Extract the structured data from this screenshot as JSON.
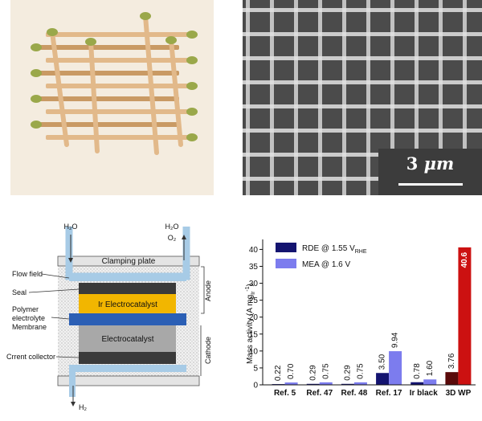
{
  "panels": {
    "sem": {
      "scale_number": "3",
      "scale_unit": "μm"
    },
    "cell": {
      "h2o_in": "H₂O",
      "h2o_out": "H₂O",
      "o2_out": "O₂",
      "h2_out": "H₂",
      "clamping_plate": "Clamping plate",
      "flow_field": "Flow field",
      "seal": "Seal",
      "ir_layer": "Ir Electrocatalyst",
      "membrane_line1": "Polymer",
      "membrane_line2": "electrolyte",
      "membrane_line3": "Membrane",
      "electrocatalyst": "Electrocatalyst",
      "current_collector": "Crrent collector",
      "anode": "Anode",
      "cathode": "Cathode",
      "colors": {
        "ir_layer": "#f2b600",
        "membrane": "#2b5fb5",
        "electrocatalyst": "#a8a8a8",
        "dark_layer": "#3a3a3a",
        "flow": "#a7cbe6"
      }
    }
  },
  "chart_data": {
    "type": "bar",
    "ylabel": "Mass activity (A mgIr-1)",
    "ylabel_main": "Mass activity (A mg",
    "ylabel_sub": "Ir",
    "ylabel_sup": "-1",
    "ylabel_end": ")",
    "ylim": [
      0,
      42
    ],
    "yticks": [
      "0",
      "5",
      "10",
      "15",
      "20",
      "25",
      "30",
      "35",
      "40"
    ],
    "categories": [
      "Ref. 5",
      "Ref. 47",
      "Ref. 48",
      "Ref. 17",
      "Ir black",
      "3D WP"
    ],
    "series": [
      {
        "name": "RDE @ 1.55 VRHE",
        "legend_main": "RDE @ 1.55 V",
        "legend_sub": "RHE",
        "color": "#141470",
        "values": [
          0.22,
          0.29,
          0.29,
          3.5,
          0.78,
          3.76
        ]
      },
      {
        "name": "MEA @ 1.6 V",
        "legend_main": "MEA @ 1.6 V",
        "legend_sub": "",
        "color": "#7c7cee",
        "values": [
          0.7,
          0.75,
          0.75,
          9.94,
          1.6,
          40.6
        ]
      }
    ],
    "data_labels": [
      [
        "0.22",
        "0.29",
        "0.29",
        "3.50",
        "0.78",
        "3.76"
      ],
      [
        "0.70",
        "0.75",
        "0.75",
        "9.94",
        "1.60",
        "40.6"
      ]
    ],
    "highlight": {
      "category": "3D WP",
      "rde_color": "#5a0a0a",
      "mea_color": "#cc1111",
      "label_color": "#ffffff"
    },
    "legend_placement": "top-left",
    "grid": false
  }
}
